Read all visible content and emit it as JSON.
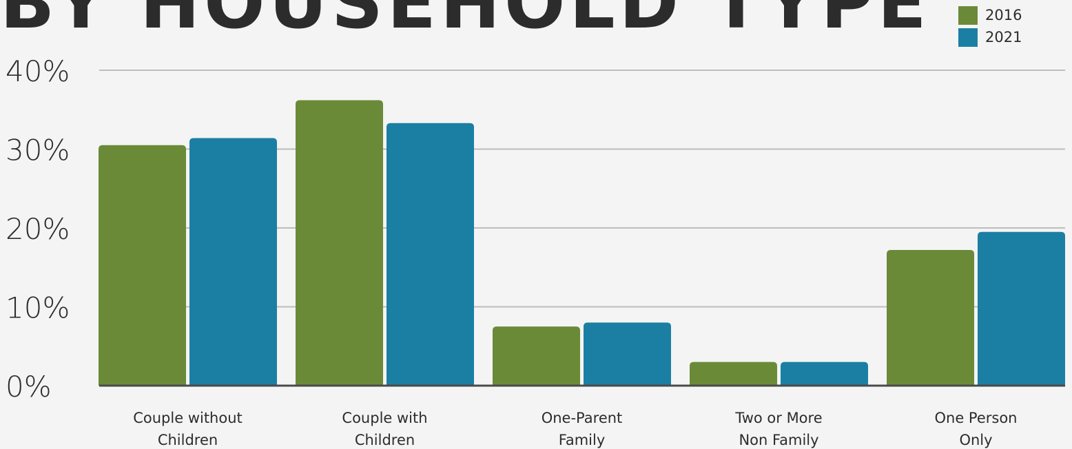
{
  "title": "BY HOUSEHOLD TYPE",
  "colors": {
    "series_2016": "#6a8a38",
    "series_2021": "#1b7fa3",
    "gridline": "#bdbdbd",
    "baseline": "#4a4a4a",
    "background": "#f4f4f4"
  },
  "chart_data": {
    "type": "bar",
    "title": "BY HOUSEHOLD TYPE",
    "categories": [
      "Couple without Children",
      "Couple with Children",
      "One-Parent Family",
      "Two or More Non Family",
      "One Person Only"
    ],
    "category_lines": [
      [
        "Couple without",
        "Children"
      ],
      [
        "Couple with",
        "Children"
      ],
      [
        "One-Parent",
        "Family"
      ],
      [
        "Two or More",
        "Non Family"
      ],
      [
        "One Person",
        "Only"
      ]
    ],
    "series": [
      {
        "name": "2016",
        "values": [
          30.5,
          36.2,
          7.5,
          3.0,
          17.2
        ]
      },
      {
        "name": "2021",
        "values": [
          31.4,
          33.3,
          8.0,
          3.0,
          19.5
        ]
      }
    ],
    "yticks": [
      "0%",
      "10%",
      "20%",
      "30%",
      "40%"
    ],
    "ylim": [
      0,
      40
    ],
    "xlabel": "",
    "ylabel": "",
    "grid": true,
    "legend_position": "top-right"
  }
}
